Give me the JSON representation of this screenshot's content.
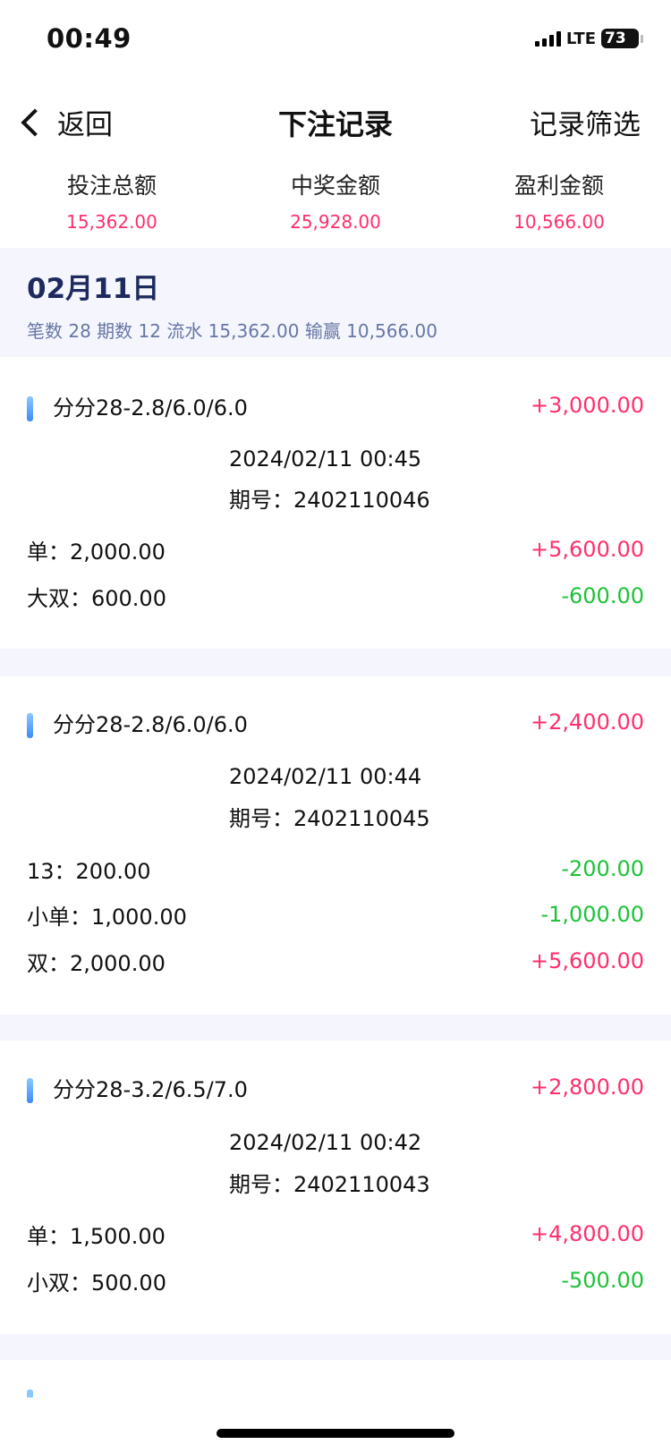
{
  "status": {
    "time": "00:49",
    "network": "LTE",
    "battery": "73"
  },
  "nav": {
    "back_label": "返回",
    "title": "下注记录",
    "filter_label": "记录筛选"
  },
  "summary": [
    {
      "label": "投注总额",
      "value": "15,362.00"
    },
    {
      "label": "中奖金额",
      "value": "25,928.00"
    },
    {
      "label": "盈利金额",
      "value": "10,566.00"
    }
  ],
  "day": {
    "date": "02月11日",
    "stats": "笔数 28 期数 12 流水 15,362.00 输赢 10,566.00"
  },
  "records": [
    {
      "name": "分分28-2.8/6.0/6.0",
      "profit": "+3,000.00",
      "time": "2024/02/11 00:45",
      "issue": "期号：2402110046",
      "bets": [
        {
          "label": "单：2,000.00",
          "result": "+5,600.00"
        },
        {
          "label": "大双：600.00",
          "result": "-600.00"
        }
      ]
    },
    {
      "name": "分分28-2.8/6.0/6.0",
      "profit": "+2,400.00",
      "time": "2024/02/11 00:44",
      "issue": "期号：2402110045",
      "bets": [
        {
          "label": "13：200.00",
          "result": "-200.00"
        },
        {
          "label": "小单：1,000.00",
          "result": "-1,000.00"
        },
        {
          "label": "双：2,000.00",
          "result": "+5,600.00"
        }
      ]
    },
    {
      "name": "分分28-3.2/6.5/7.0",
      "profit": "+2,800.00",
      "time": "2024/02/11 00:42",
      "issue": "期号：2402110043",
      "bets": [
        {
          "label": "单：1,500.00",
          "result": "+4,800.00"
        },
        {
          "label": "小双：500.00",
          "result": "-500.00"
        }
      ]
    }
  ],
  "colors": {
    "positive": "#ff2f6d",
    "negative": "#1ec23a",
    "date": "#1e2a5e",
    "band": "#f5f6fd"
  }
}
